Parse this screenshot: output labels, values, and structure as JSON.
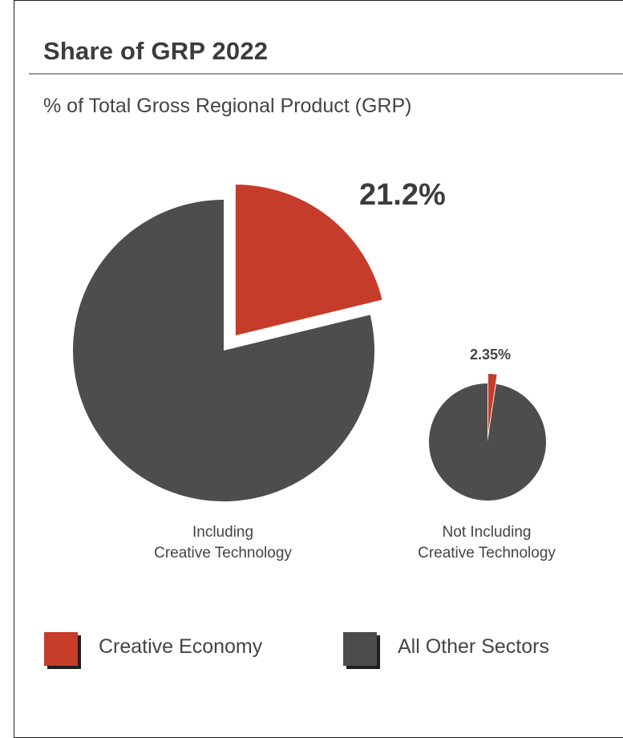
{
  "header": {
    "title": "Share of GRP 2022",
    "subtitle": "% of Total Gross Regional Product (GRP)"
  },
  "colors": {
    "creative": "#c53c2b",
    "other": "#4d4d4d"
  },
  "chart_data": {
    "type": "pie",
    "title": "Share of GRP 2022",
    "subtitle": "% of Total Gross Regional Product (GRP)",
    "legend": [
      "Creative Economy",
      "All Other Sectors"
    ],
    "legend_position": "bottom",
    "pies": [
      {
        "caption": "Including\nCreative Technology",
        "slices": [
          {
            "label": "Creative Economy",
            "value": 21.2,
            "color": "#c53c2b",
            "exploded": true
          },
          {
            "label": "All Other Sectors",
            "value": 78.8,
            "color": "#4d4d4d"
          }
        ],
        "data_label": "21.2%"
      },
      {
        "caption": "Not Including\nCreative Technology",
        "slices": [
          {
            "label": "Creative Economy",
            "value": 2.35,
            "color": "#c53c2b",
            "exploded": true
          },
          {
            "label": "All Other Sectors",
            "value": 97.65,
            "color": "#4d4d4d"
          }
        ],
        "data_label": "2.35%"
      }
    ]
  }
}
